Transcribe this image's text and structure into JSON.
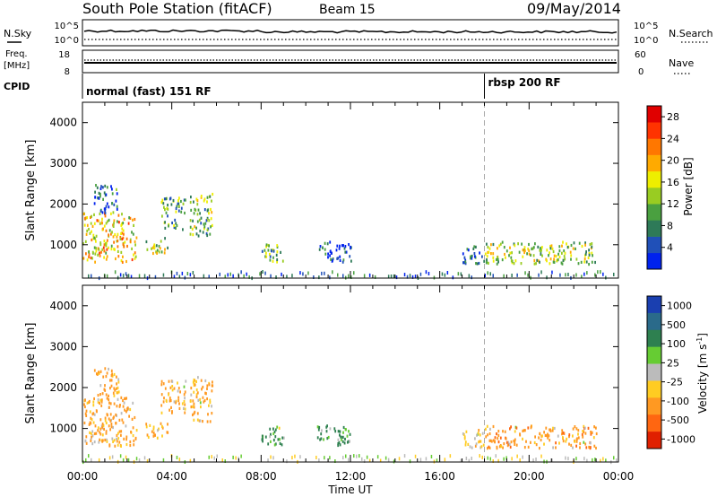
{
  "header": {
    "title": "South Pole Station (fitACF)",
    "beam": "Beam 15",
    "date": "09/May/2014"
  },
  "noise_panel": {
    "left_label": "N.Sky",
    "right_label": "N.Search",
    "left_ticks": [
      "10^5",
      "10^0"
    ],
    "right_ticks": [
      "10^5",
      "10^0"
    ]
  },
  "freq_panel": {
    "left_label_1": "Freq.",
    "left_label_2": "[MHz]",
    "right_label": "Nave",
    "left_ticks": [
      "18",
      "8"
    ],
    "right_ticks": [
      "60",
      "0"
    ]
  },
  "cpid": {
    "label": "CPID",
    "modes": [
      {
        "start_hour": 0,
        "text": "normal (fast) 151 RF"
      },
      {
        "start_hour": 18,
        "text": "rbsp 200 RF"
      }
    ]
  },
  "time_axis": {
    "label": "Time UT",
    "ticks": [
      "00:00",
      "04:00",
      "08:00",
      "12:00",
      "16:00",
      "20:00",
      "00:00"
    ]
  },
  "chart_data": [
    {
      "type": "heatmap",
      "name": "power",
      "ylabel": "Slant Range [km]",
      "yticks": [
        1000,
        2000,
        3000,
        4000
      ],
      "ylim": [
        180,
        4500
      ],
      "xlim_hours": [
        0,
        24
      ],
      "colorbar_label": "Power [dB]",
      "colorbar_ticks": [
        "4",
        "8",
        "12",
        "16",
        "20",
        "24",
        "28"
      ],
      "colorbar_range": [
        0,
        30
      ],
      "colors": [
        "#0022ee",
        "#2050b8",
        "#2e7a58",
        "#4aa040",
        "#99cc22",
        "#eeee00",
        "#ffaa00",
        "#ff7700",
        "#ff3300",
        "#e00000"
      ],
      "echo_regions": [
        {
          "t": [
            0.0,
            2.4
          ],
          "r": [
            600,
            1800
          ],
          "value": 18
        },
        {
          "t": [
            0.5,
            1.6
          ],
          "r": [
            1800,
            2500
          ],
          "value": 6
        },
        {
          "t": [
            2.8,
            3.8
          ],
          "r": [
            800,
            1200
          ],
          "value": 14
        },
        {
          "t": [
            3.5,
            4.6
          ],
          "r": [
            1400,
            2200
          ],
          "value": 10
        },
        {
          "t": [
            4.8,
            5.8
          ],
          "r": [
            1200,
            2300
          ],
          "value": 12
        },
        {
          "t": [
            8.0,
            9.0
          ],
          "r": [
            600,
            1100
          ],
          "value": 10
        },
        {
          "t": [
            10.5,
            12.0
          ],
          "r": [
            600,
            1100
          ],
          "value": 5
        },
        {
          "t": [
            17.0,
            18.0
          ],
          "r": [
            550,
            1000
          ],
          "value": 5
        },
        {
          "t": [
            18.0,
            23.0
          ],
          "r": [
            550,
            1100
          ],
          "value": 14
        }
      ]
    },
    {
      "type": "heatmap",
      "name": "velocity",
      "ylabel": "Slant Range [km]",
      "yticks": [
        1000,
        2000,
        3000,
        4000
      ],
      "ylim": [
        180,
        4500
      ],
      "xlim_hours": [
        0,
        24
      ],
      "colorbar_label": "Velocity [m s^-1]",
      "colorbar_ticks": [
        "1000",
        "500",
        "100",
        "25",
        "-25",
        "-100",
        "-500",
        "-1000"
      ],
      "colors": [
        "#1a3fb0",
        "#2a6a8a",
        "#2e8050",
        "#66cc33",
        "#bbbbbb",
        "#ffcc22",
        "#ff9922",
        "#ff6611",
        "#e02000"
      ],
      "echo_regions": [
        {
          "t": [
            0.0,
            2.4
          ],
          "r": [
            600,
            1800
          ],
          "value": -150
        },
        {
          "t": [
            0.5,
            1.6
          ],
          "r": [
            1800,
            2500
          ],
          "value": -200
        },
        {
          "t": [
            2.8,
            3.8
          ],
          "r": [
            800,
            1200
          ],
          "value": -100
        },
        {
          "t": [
            3.5,
            4.6
          ],
          "r": [
            1400,
            2200
          ],
          "value": -150
        },
        {
          "t": [
            4.8,
            5.8
          ],
          "r": [
            1200,
            2300
          ],
          "value": -150
        },
        {
          "t": [
            8.0,
            9.0
          ],
          "r": [
            600,
            1100
          ],
          "value": 200
        },
        {
          "t": [
            10.5,
            12.0
          ],
          "r": [
            600,
            1100
          ],
          "value": 150
        },
        {
          "t": [
            17.0,
            18.0
          ],
          "r": [
            550,
            1000
          ],
          "value": -50
        },
        {
          "t": [
            18.0,
            23.0
          ],
          "r": [
            550,
            1100
          ],
          "value": -300
        }
      ]
    }
  ]
}
